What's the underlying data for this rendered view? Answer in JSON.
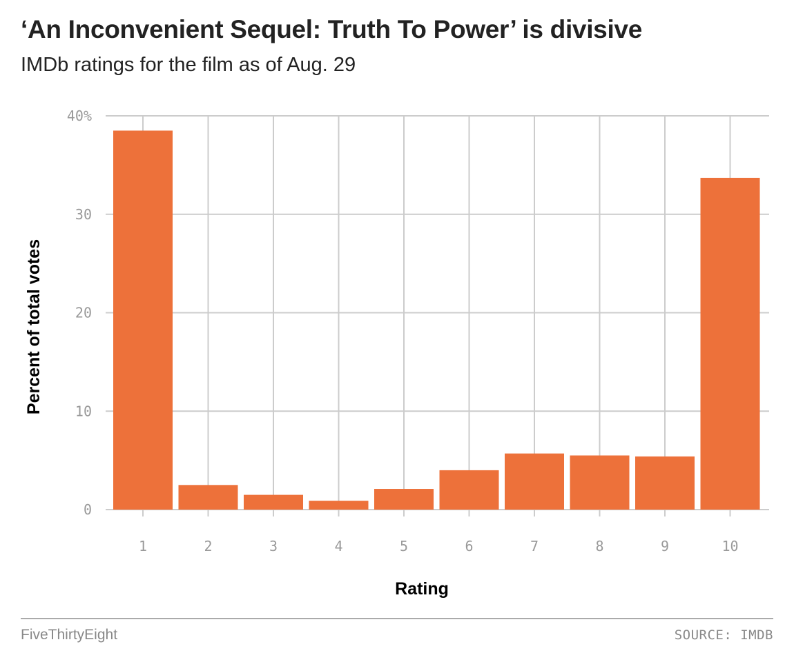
{
  "header": {
    "title": "‘An Inconvenient Sequel: Truth To Power’ is divisive",
    "subtitle": "IMDb ratings for the film as of Aug. 29"
  },
  "chart_data": {
    "type": "bar",
    "categories": [
      "1",
      "2",
      "3",
      "4",
      "5",
      "6",
      "7",
      "8",
      "9",
      "10"
    ],
    "values": [
      38.5,
      2.5,
      1.5,
      0.9,
      2.1,
      4.0,
      5.7,
      5.5,
      5.4,
      33.7
    ],
    "xlabel": "Rating",
    "ylabel": "Percent of total votes",
    "ylim": [
      0,
      40
    ],
    "yticks": [
      0,
      10,
      20,
      30,
      40
    ],
    "ytick_labels": [
      "0",
      "10",
      "20",
      "30",
      "40%"
    ],
    "grid": true,
    "bar_color": "#ed713a",
    "grid_color": "#cccccc"
  },
  "footer": {
    "brand": "FiveThirtyEight",
    "source": "SOURCE: IMDB"
  }
}
